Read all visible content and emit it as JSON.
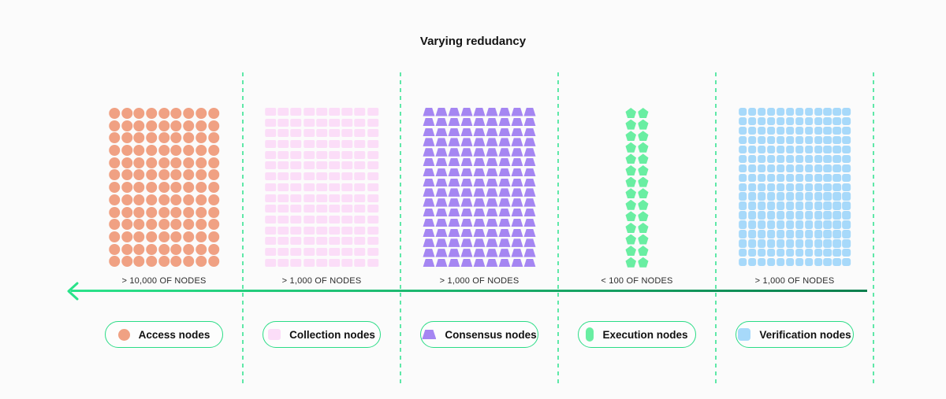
{
  "title": "Varying redudancy",
  "colors": {
    "background": "#FBFBFB",
    "access": "#F0A183",
    "collection": "#FBDDF8",
    "consensus": "#A586F2",
    "execution": "#69EEA2",
    "verification": "#A7D9FA",
    "axis_bright": "#2AE38A",
    "axis_dark": "#0C7F4E",
    "separator": "#5FE8A8",
    "legend_border": "#2BDC86"
  },
  "axis": {
    "direction": "left",
    "style": "gradient-green-arrow"
  },
  "sections": [
    {
      "id": "access",
      "shape": "circle",
      "rows": 13,
      "cols": 9,
      "count_label": "> 10,000 OF NODES",
      "legend_label": "Access nodes"
    },
    {
      "id": "collection",
      "shape": "rect",
      "rows": 15,
      "cols": 9,
      "count_label": "> 1,000 OF NODES",
      "legend_label": "Collection nodes"
    },
    {
      "id": "consensus",
      "shape": "trapezoid",
      "rows": 16,
      "cols": 9,
      "count_label": "> 1,000 OF NODES",
      "legend_label": "Consensus nodes"
    },
    {
      "id": "execution",
      "shape": "pentagon",
      "rows": 14,
      "cols": 2,
      "count_label": "< 100 OF NODES",
      "legend_label": "Execution nodes"
    },
    {
      "id": "verification",
      "shape": "square",
      "rows": 17,
      "cols": 12,
      "count_label": "> 1,000 OF NODES",
      "legend_label": "Verification nodes"
    }
  ]
}
